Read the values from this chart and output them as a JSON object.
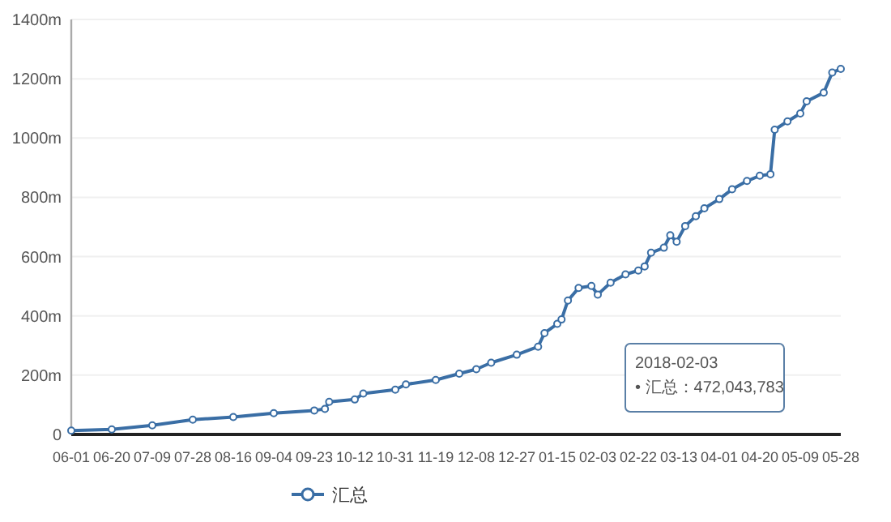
{
  "chart_data": {
    "type": "line",
    "x": [
      "2017-06-01",
      "2017-06-20",
      "2017-07-09",
      "2017-07-28",
      "2017-08-16",
      "2017-09-04",
      "2017-09-23",
      "2017-09-28",
      "2017-09-30",
      "2017-10-12",
      "2017-10-16",
      "2017-10-31",
      "2017-11-05",
      "2017-11-19",
      "2017-11-30",
      "2017-12-08",
      "2017-12-15",
      "2017-12-27",
      "2018-01-06",
      "2018-01-09",
      "2018-01-15",
      "2018-01-17",
      "2018-01-20",
      "2018-01-25",
      "2018-01-31",
      "2018-02-03",
      "2018-02-09",
      "2018-02-16",
      "2018-02-22",
      "2018-02-25",
      "2018-02-28",
      "2018-03-06",
      "2018-03-09",
      "2018-03-12",
      "2018-03-16",
      "2018-03-21",
      "2018-03-25",
      "2018-04-01",
      "2018-04-07",
      "2018-04-14",
      "2018-04-20",
      "2018-04-25",
      "2018-04-27",
      "2018-05-03",
      "2018-05-09",
      "2018-05-12",
      "2018-05-20",
      "2018-05-24",
      "2018-05-28"
    ],
    "series": [
      {
        "name": "汇总",
        "color": "#3a6ea5",
        "values": [
          13,
          17,
          31,
          50,
          59,
          72,
          81,
          86,
          110,
          118,
          138,
          151,
          169,
          184,
          205,
          220,
          242,
          269,
          296,
          342,
          373,
          388,
          452,
          494,
          501,
          472,
          512,
          540,
          553,
          567,
          613,
          630,
          672,
          650,
          703,
          736,
          763,
          794,
          827,
          855,
          873,
          878,
          1028,
          1056,
          1083,
          1124,
          1153,
          1221,
          1233
        ]
      }
    ],
    "xlim": [
      "2017-06-01",
      "2018-05-28"
    ],
    "xticks": [
      {
        "value": "2017-06-01",
        "label": "06-01"
      },
      {
        "value": "2017-06-20",
        "label": "06-20"
      },
      {
        "value": "2017-07-09",
        "label": "07-09"
      },
      {
        "value": "2017-07-28",
        "label": "07-28"
      },
      {
        "value": "2017-08-16",
        "label": "08-16"
      },
      {
        "value": "2017-09-04",
        "label": "09-04"
      },
      {
        "value": "2017-09-23",
        "label": "09-23"
      },
      {
        "value": "2017-10-12",
        "label": "10-12"
      },
      {
        "value": "2017-10-31",
        "label": "10-31"
      },
      {
        "value": "2017-11-19",
        "label": "11-19"
      },
      {
        "value": "2017-12-08",
        "label": "12-08"
      },
      {
        "value": "2017-12-27",
        "label": "12-27"
      },
      {
        "value": "2018-01-15",
        "label": "01-15"
      },
      {
        "value": "2018-02-03",
        "label": "02-03"
      },
      {
        "value": "2018-02-22",
        "label": "02-22"
      },
      {
        "value": "2018-03-13",
        "label": "03-13"
      },
      {
        "value": "2018-04-01",
        "label": "04-01"
      },
      {
        "value": "2018-04-20",
        "label": "04-20"
      },
      {
        "value": "2018-05-09",
        "label": "05-09"
      },
      {
        "value": "2018-05-28",
        "label": "05-28"
      }
    ],
    "ylim": [
      0,
      1400
    ],
    "yticks": [
      0,
      {
        "value": 200,
        "label": "200m"
      },
      {
        "value": 400,
        "label": "400m"
      },
      {
        "value": 600,
        "label": "600m"
      },
      {
        "value": 800,
        "label": "800m"
      },
      {
        "value": 1000,
        "label": "1000m"
      },
      {
        "value": 1200,
        "label": "1200m"
      },
      {
        "value": 1400,
        "label": "1400m"
      }
    ],
    "grid": "y",
    "legend": "bottom",
    "marker": "circle",
    "line_style": "solid",
    "annotations": [
      "2018-02-03",
      "• 汇总：472,043,783"
    ]
  }
}
